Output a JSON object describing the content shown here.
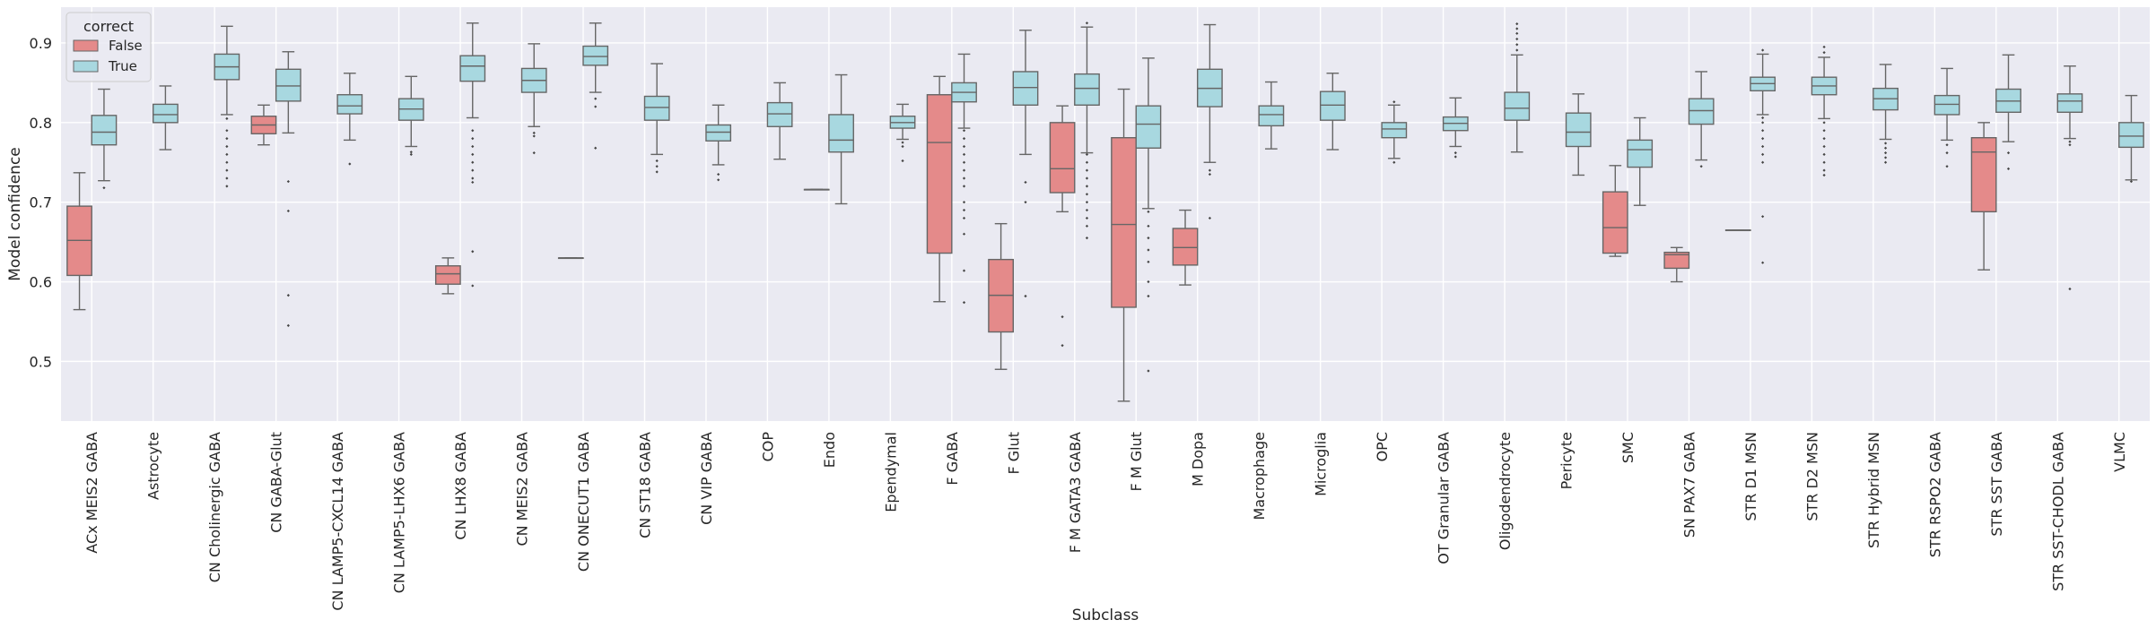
{
  "chart_data": {
    "type": "box",
    "title": "",
    "xlabel": "Subclass",
    "ylabel": "Model confidence",
    "ylim": [
      0.425,
      0.945
    ],
    "yticks": [
      0.5,
      0.6,
      0.7,
      0.8,
      0.9
    ],
    "grid": true,
    "legend": {
      "title": "correct",
      "position": "top-left",
      "entries": [
        {
          "label": "False",
          "color": "#e48a8a"
        },
        {
          "label": "True",
          "color": "#a8d8e0"
        }
      ]
    },
    "colors": {
      "False": "#e48a8a",
      "True": "#a8d8e0",
      "background": "#eaeaf2",
      "line": "#666666"
    },
    "categories": [
      "ACx MEIS2 GABA",
      "Astrocyte",
      "CN Cholinergic GABA",
      "CN GABA-Glut",
      "CN LAMP5-CXCL14 GABA",
      "CN LAMP5-LHX6 GABA",
      "CN LHX8 GABA",
      "CN MEIS2 GABA",
      "CN ONECUT1 GABA",
      "CN ST18 GABA",
      "CN VIP GABA",
      "COP",
      "Endo",
      "Ependymal",
      "F GABA",
      "F Glut",
      "F M GATA3 GABA",
      "F M Glut",
      "M Dopa",
      "Macrophage",
      "Microglia",
      "OPC",
      "OT Granular GABA",
      "Oligodendrocyte",
      "Pericyte",
      "SMC",
      "SN PAX7 GABA",
      "STR D1 MSN",
      "STR D2 MSN",
      "STR Hybrid MSN",
      "STR RSPO2 GABA",
      "STR SST GABA",
      "STR SST-CHODL GABA",
      "VLMC"
    ],
    "series": [
      {
        "name": "False",
        "boxes": [
          {
            "category": "ACx MEIS2 GABA",
            "whislo": 0.565,
            "q1": 0.608,
            "med": 0.652,
            "q3": 0.695,
            "whishi": 0.737,
            "fliers": []
          },
          {
            "category": "CN GABA-Glut",
            "whislo": 0.772,
            "q1": 0.786,
            "med": 0.797,
            "q3": 0.808,
            "whishi": 0.822,
            "fliers": []
          },
          {
            "category": "CN LHX8 GABA",
            "whislo": 0.585,
            "q1": 0.597,
            "med": 0.61,
            "q3": 0.62,
            "whishi": 0.63,
            "fliers": []
          },
          {
            "category": "CN ONECUT1 GABA",
            "whislo": 0.63,
            "q1": 0.63,
            "med": 0.63,
            "q3": 0.63,
            "whishi": 0.63,
            "fliers": []
          },
          {
            "category": "Endo",
            "whislo": 0.716,
            "q1": 0.716,
            "med": 0.716,
            "q3": 0.716,
            "whishi": 0.716,
            "fliers": []
          },
          {
            "category": "F GABA",
            "whislo": 0.575,
            "q1": 0.636,
            "med": 0.775,
            "q3": 0.835,
            "whishi": 0.858,
            "fliers": []
          },
          {
            "category": "F Glut",
            "whislo": 0.49,
            "q1": 0.537,
            "med": 0.583,
            "q3": 0.628,
            "whishi": 0.673,
            "fliers": []
          },
          {
            "category": "F M GATA3 GABA",
            "whislo": 0.688,
            "q1": 0.712,
            "med": 0.742,
            "q3": 0.8,
            "whishi": 0.821,
            "fliers": [
              0.556,
              0.52
            ]
          },
          {
            "category": "F M Glut",
            "whislo": 0.45,
            "q1": 0.568,
            "med": 0.672,
            "q3": 0.781,
            "whishi": 0.842,
            "fliers": []
          },
          {
            "category": "M Dopa",
            "whislo": 0.596,
            "q1": 0.621,
            "med": 0.643,
            "q3": 0.667,
            "whishi": 0.69,
            "fliers": []
          },
          {
            "category": "SMC",
            "whislo": 0.632,
            "q1": 0.636,
            "med": 0.668,
            "q3": 0.713,
            "whishi": 0.746,
            "fliers": []
          },
          {
            "category": "SN PAX7 GABA",
            "whislo": 0.6,
            "q1": 0.617,
            "med": 0.634,
            "q3": 0.637,
            "whishi": 0.643,
            "fliers": []
          },
          {
            "category": "STR D1 MSN",
            "whislo": 0.665,
            "q1": 0.665,
            "med": 0.665,
            "q3": 0.665,
            "whishi": 0.665,
            "fliers": []
          },
          {
            "category": "STR SST GABA",
            "whislo": 0.615,
            "q1": 0.688,
            "med": 0.763,
            "q3": 0.781,
            "whishi": 0.8,
            "fliers": []
          }
        ]
      },
      {
        "name": "True",
        "boxes": [
          {
            "category": "ACx MEIS2 GABA",
            "whislo": 0.727,
            "q1": 0.772,
            "med": 0.788,
            "q3": 0.809,
            "whishi": 0.842,
            "fliers": [
              0.718
            ]
          },
          {
            "category": "Astrocyte",
            "whislo": 0.766,
            "q1": 0.8,
            "med": 0.81,
            "q3": 0.823,
            "whishi": 0.846,
            "fliers": []
          },
          {
            "category": "CN Cholinergic GABA",
            "whislo": 0.81,
            "q1": 0.854,
            "med": 0.87,
            "q3": 0.886,
            "whishi": 0.921,
            "fliers": [
              0.805,
              0.79,
              0.78,
              0.77,
              0.76,
              0.75,
              0.74,
              0.73,
              0.72
            ]
          },
          {
            "category": "CN GABA-Glut",
            "whislo": 0.787,
            "q1": 0.827,
            "med": 0.846,
            "q3": 0.867,
            "whishi": 0.889,
            "fliers": [
              0.726,
              0.689,
              0.583,
              0.545
            ]
          },
          {
            "category": "CN LAMP5-CXCL14 GABA",
            "whislo": 0.778,
            "q1": 0.811,
            "med": 0.821,
            "q3": 0.835,
            "whishi": 0.862,
            "fliers": [
              0.748
            ]
          },
          {
            "category": "CN LAMP5-LHX6 GABA",
            "whislo": 0.77,
            "q1": 0.803,
            "med": 0.817,
            "q3": 0.83,
            "whishi": 0.858,
            "fliers": [
              0.763,
              0.76
            ]
          },
          {
            "category": "CN LHX8 GABA",
            "whislo": 0.806,
            "q1": 0.852,
            "med": 0.871,
            "q3": 0.884,
            "whishi": 0.925,
            "fliers": [
              0.79,
              0.78,
              0.77,
              0.76,
              0.75,
              0.74,
              0.73,
              0.725,
              0.638,
              0.595
            ]
          },
          {
            "category": "CN MEIS2 GABA",
            "whislo": 0.795,
            "q1": 0.838,
            "med": 0.853,
            "q3": 0.868,
            "whishi": 0.899,
            "fliers": [
              0.787,
              0.783,
              0.762
            ]
          },
          {
            "category": "CN ONECUT1 GABA",
            "whislo": 0.838,
            "q1": 0.872,
            "med": 0.883,
            "q3": 0.896,
            "whishi": 0.925,
            "fliers": [
              0.83,
              0.82,
              0.768
            ]
          },
          {
            "category": "CN ST18 GABA",
            "whislo": 0.76,
            "q1": 0.803,
            "med": 0.819,
            "q3": 0.833,
            "whishi": 0.874,
            "fliers": [
              0.752,
              0.745,
              0.738
            ]
          },
          {
            "category": "CN VIP GABA",
            "whislo": 0.747,
            "q1": 0.777,
            "med": 0.788,
            "q3": 0.797,
            "whishi": 0.822,
            "fliers": [
              0.735,
              0.728
            ]
          },
          {
            "category": "COP",
            "whislo": 0.754,
            "q1": 0.795,
            "med": 0.811,
            "q3": 0.825,
            "whishi": 0.85,
            "fliers": []
          },
          {
            "category": "Endo",
            "whislo": 0.698,
            "q1": 0.763,
            "med": 0.778,
            "q3": 0.81,
            "whishi": 0.86,
            "fliers": []
          },
          {
            "category": "Ependymal",
            "whislo": 0.779,
            "q1": 0.793,
            "med": 0.8,
            "q3": 0.808,
            "whishi": 0.823,
            "fliers": [
              0.775,
              0.77,
              0.752
            ]
          },
          {
            "category": "F GABA",
            "whislo": 0.793,
            "q1": 0.826,
            "med": 0.838,
            "q3": 0.85,
            "whishi": 0.886,
            "fliers": [
              0.79,
              0.78,
              0.77,
              0.76,
              0.75,
              0.74,
              0.73,
              0.72,
              0.7,
              0.69,
              0.68,
              0.66,
              0.614,
              0.574
            ]
          },
          {
            "category": "F Glut",
            "whislo": 0.76,
            "q1": 0.822,
            "med": 0.844,
            "q3": 0.864,
            "whishi": 0.916,
            "fliers": [
              0.725,
              0.7,
              0.582
            ]
          },
          {
            "category": "F M GATA3 GABA",
            "whislo": 0.762,
            "q1": 0.822,
            "med": 0.843,
            "q3": 0.861,
            "whishi": 0.92,
            "fliers": [
              0.925,
              0.76,
              0.75,
              0.74,
              0.73,
              0.72,
              0.71,
              0.7,
              0.69,
              0.68,
              0.67,
              0.655
            ]
          },
          {
            "category": "F M Glut",
            "whislo": 0.692,
            "q1": 0.768,
            "med": 0.798,
            "q3": 0.821,
            "whishi": 0.881,
            "fliers": [
              0.688,
              0.67,
              0.655,
              0.64,
              0.625,
              0.6,
              0.582,
              0.488
            ]
          },
          {
            "category": "M Dopa",
            "whislo": 0.75,
            "q1": 0.82,
            "med": 0.843,
            "q3": 0.867,
            "whishi": 0.923,
            "fliers": [
              0.74,
              0.735,
              0.68
            ]
          },
          {
            "category": "Macrophage",
            "whislo": 0.767,
            "q1": 0.796,
            "med": 0.81,
            "q3": 0.821,
            "whishi": 0.851,
            "fliers": []
          },
          {
            "category": "Microglia",
            "whislo": 0.766,
            "q1": 0.803,
            "med": 0.822,
            "q3": 0.839,
            "whishi": 0.862,
            "fliers": []
          },
          {
            "category": "OPC",
            "whislo": 0.755,
            "q1": 0.781,
            "med": 0.792,
            "q3": 0.8,
            "whishi": 0.822,
            "fliers": [
              0.826,
              0.75
            ]
          },
          {
            "category": "OT Granular GABA",
            "whislo": 0.77,
            "q1": 0.79,
            "med": 0.799,
            "q3": 0.807,
            "whishi": 0.831,
            "fliers": [
              0.762,
              0.757
            ]
          },
          {
            "category": "Oligodendrocyte",
            "whislo": 0.763,
            "q1": 0.803,
            "med": 0.818,
            "q3": 0.838,
            "whishi": 0.885,
            "fliers": [
              0.924,
              0.918,
              0.912,
              0.905,
              0.898,
              0.891
            ]
          },
          {
            "category": "Pericyte",
            "whislo": 0.734,
            "q1": 0.77,
            "med": 0.788,
            "q3": 0.812,
            "whishi": 0.836,
            "fliers": []
          },
          {
            "category": "SMC",
            "whislo": 0.696,
            "q1": 0.744,
            "med": 0.766,
            "q3": 0.778,
            "whishi": 0.806,
            "fliers": []
          },
          {
            "category": "SN PAX7 GABA",
            "whislo": 0.753,
            "q1": 0.798,
            "med": 0.815,
            "q3": 0.83,
            "whishi": 0.864,
            "fliers": [
              0.745
            ]
          },
          {
            "category": "STR D1 MSN",
            "whislo": 0.81,
            "q1": 0.84,
            "med": 0.849,
            "q3": 0.857,
            "whishi": 0.886,
            "fliers": [
              0.891,
              0.806,
              0.8,
              0.79,
              0.78,
              0.77,
              0.76,
              0.75,
              0.682,
              0.624
            ]
          },
          {
            "category": "STR D2 MSN",
            "whislo": 0.805,
            "q1": 0.835,
            "med": 0.846,
            "q3": 0.857,
            "whishi": 0.882,
            "fliers": [
              0.895,
              0.888,
              0.8,
              0.79,
              0.78,
              0.77,
              0.76,
              0.75,
              0.74,
              0.734
            ]
          },
          {
            "category": "STR Hybrid MSN",
            "whislo": 0.779,
            "q1": 0.816,
            "med": 0.83,
            "q3": 0.843,
            "whishi": 0.873,
            "fliers": [
              0.774,
              0.768,
              0.762,
              0.756,
              0.75
            ]
          },
          {
            "category": "STR RSPO2 GABA",
            "whislo": 0.778,
            "q1": 0.81,
            "med": 0.823,
            "q3": 0.834,
            "whishi": 0.868,
            "fliers": [
              0.772,
              0.762,
              0.745
            ]
          },
          {
            "category": "STR SST GABA",
            "whislo": 0.776,
            "q1": 0.813,
            "med": 0.827,
            "q3": 0.842,
            "whishi": 0.885,
            "fliers": [
              0.762,
              0.742
            ]
          },
          {
            "category": "STR SST-CHODL GABA",
            "whislo": 0.78,
            "q1": 0.813,
            "med": 0.827,
            "q3": 0.836,
            "whishi": 0.871,
            "fliers": [
              0.776,
              0.772,
              0.591
            ]
          },
          {
            "category": "VLMC",
            "whislo": 0.728,
            "q1": 0.769,
            "med": 0.783,
            "q3": 0.8,
            "whishi": 0.834,
            "fliers": [
              0.726
            ]
          }
        ]
      }
    ]
  }
}
